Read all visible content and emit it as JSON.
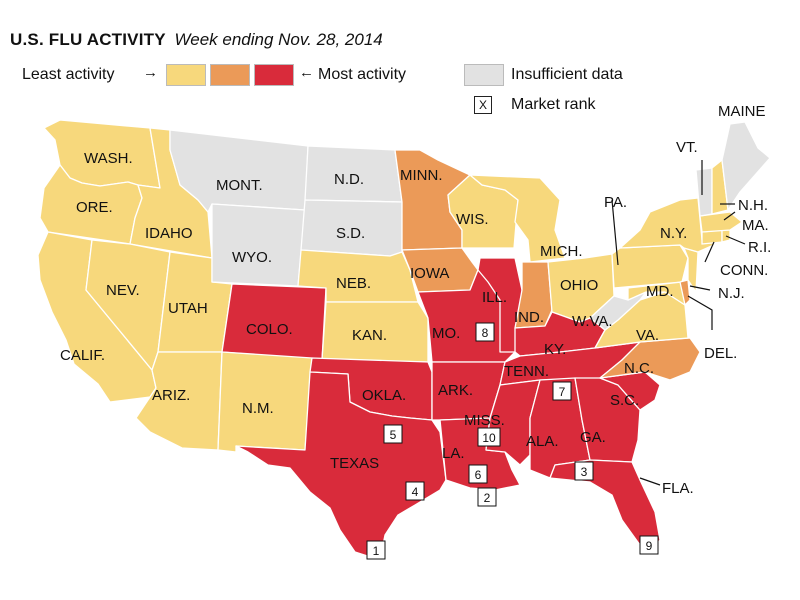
{
  "title": {
    "main": "U.S. FLU ACTIVITY",
    "sub": "Week ending Nov. 28, 2014"
  },
  "legend": {
    "least_label": "Least activity",
    "most_label": "Most activity",
    "insufficient_label": "Insufficient data",
    "market_rank_label": "Market rank",
    "market_rank_symbol": "X"
  },
  "colors": {
    "low": "#f7d87c",
    "medium": "#eb9a58",
    "high": "#d92b3b",
    "insufficient": "#e2e2e2"
  },
  "states": [
    {
      "label": "WASH.",
      "level": "low"
    },
    {
      "label": "ORE.",
      "level": "low"
    },
    {
      "label": "CALIF.",
      "level": "low"
    },
    {
      "label": "IDAHO",
      "level": "low"
    },
    {
      "label": "NEV.",
      "level": "low"
    },
    {
      "label": "UTAH",
      "level": "low"
    },
    {
      "label": "ARIZ.",
      "level": "low"
    },
    {
      "label": "MONT.",
      "level": "insufficient"
    },
    {
      "label": "WYO.",
      "level": "insufficient"
    },
    {
      "label": "COLO.",
      "level": "high"
    },
    {
      "label": "N.M.",
      "level": "low"
    },
    {
      "label": "N.D.",
      "level": "insufficient"
    },
    {
      "label": "S.D.",
      "level": "insufficient"
    },
    {
      "label": "NEB.",
      "level": "low"
    },
    {
      "label": "KAN.",
      "level": "low"
    },
    {
      "label": "OKLA.",
      "level": "high"
    },
    {
      "label": "TEXAS",
      "level": "high"
    },
    {
      "label": "MINN.",
      "level": "medium"
    },
    {
      "label": "IOWA",
      "level": "medium"
    },
    {
      "label": "MO.",
      "level": "high"
    },
    {
      "label": "ARK.",
      "level": "high"
    },
    {
      "label": "LA.",
      "level": "high"
    },
    {
      "label": "WIS.",
      "level": "low"
    },
    {
      "label": "ILL.",
      "level": "high"
    },
    {
      "label": "MICH.",
      "level": "low"
    },
    {
      "label": "IND.",
      "level": "medium"
    },
    {
      "label": "OHIO",
      "level": "low"
    },
    {
      "label": "KY.",
      "level": "high"
    },
    {
      "label": "TENN.",
      "level": "high"
    },
    {
      "label": "MISS.",
      "level": "high"
    },
    {
      "label": "ALA.",
      "level": "high"
    },
    {
      "label": "GA.",
      "level": "high"
    },
    {
      "label": "FLA.",
      "level": "high"
    },
    {
      "label": "S.C.",
      "level": "high"
    },
    {
      "label": "N.C.",
      "level": "medium"
    },
    {
      "label": "VA.",
      "level": "low"
    },
    {
      "label": "W.VA.",
      "level": "insufficient"
    },
    {
      "label": "PA.",
      "level": "low"
    },
    {
      "label": "N.Y.",
      "level": "low"
    },
    {
      "label": "MD.",
      "level": "low"
    },
    {
      "label": "DEL.",
      "level": "medium"
    },
    {
      "label": "N.J.",
      "level": "low"
    },
    {
      "label": "CONN.",
      "level": "low"
    },
    {
      "label": "R.I.",
      "level": "low"
    },
    {
      "label": "MA.",
      "level": "low"
    },
    {
      "label": "VT.",
      "level": "insufficient"
    },
    {
      "label": "N.H.",
      "level": "low"
    },
    {
      "label": "MAINE",
      "level": "insufficient"
    }
  ],
  "market_ranks": [
    {
      "rank": "1",
      "state": "TEXAS"
    },
    {
      "rank": "2",
      "state": "LA."
    },
    {
      "rank": "3",
      "state": "GA."
    },
    {
      "rank": "4",
      "state": "TEXAS"
    },
    {
      "rank": "5",
      "state": "TEXAS"
    },
    {
      "rank": "6",
      "state": "LA."
    },
    {
      "rank": "7",
      "state": "TENN."
    },
    {
      "rank": "8",
      "state": "MO."
    },
    {
      "rank": "9",
      "state": "FLA."
    },
    {
      "rank": "10",
      "state": "MISS."
    }
  ]
}
